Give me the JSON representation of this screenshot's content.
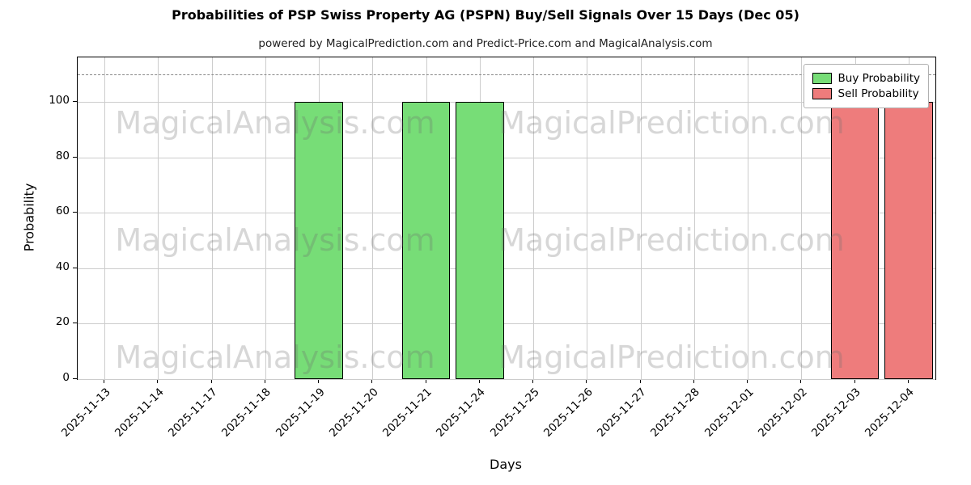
{
  "title": "Probabilities of PSP Swiss Property AG (PSPN) Buy/Sell Signals Over 15 Days (Dec 05)",
  "subtitle": "powered by MagicalPrediction.com and Predict-Price.com and MagicalAnalysis.com",
  "watermarks": {
    "left": "MagicalAnalysis.com",
    "right": "MagicalPrediction.com"
  },
  "chart_data": {
    "type": "bar",
    "title": "Probabilities of PSP Swiss Property AG (PSPN) Buy/Sell Signals Over 15 Days (Dec 05)",
    "subtitle": "powered by MagicalPrediction.com and Predict-Price.com and MagicalAnalysis.com",
    "xlabel": "Days",
    "ylabel": "Probability",
    "ylim": [
      0,
      116
    ],
    "yticks": [
      0,
      20,
      40,
      60,
      80,
      100
    ],
    "dashed_line_y": 110,
    "grid": true,
    "legend_position": "upper right",
    "bar_edge_color": "#000000",
    "categories": [
      "2025-11-13",
      "2025-11-14",
      "2025-11-17",
      "2025-11-18",
      "2025-11-19",
      "2025-11-20",
      "2025-11-21",
      "2025-11-24",
      "2025-11-25",
      "2025-11-26",
      "2025-11-27",
      "2025-11-28",
      "2025-12-01",
      "2025-12-02",
      "2025-12-03",
      "2025-12-04"
    ],
    "series": [
      {
        "name": "Buy Probability",
        "color": "#77dd77",
        "values": [
          0,
          0,
          0,
          0,
          100,
          0,
          100,
          100,
          0,
          0,
          0,
          0,
          0,
          0,
          0,
          0
        ]
      },
      {
        "name": "Sell Probability",
        "color": "#ee7c7c",
        "values": [
          0,
          0,
          0,
          0,
          0,
          0,
          0,
          0,
          0,
          0,
          0,
          0,
          0,
          0,
          100,
          100
        ]
      }
    ]
  }
}
